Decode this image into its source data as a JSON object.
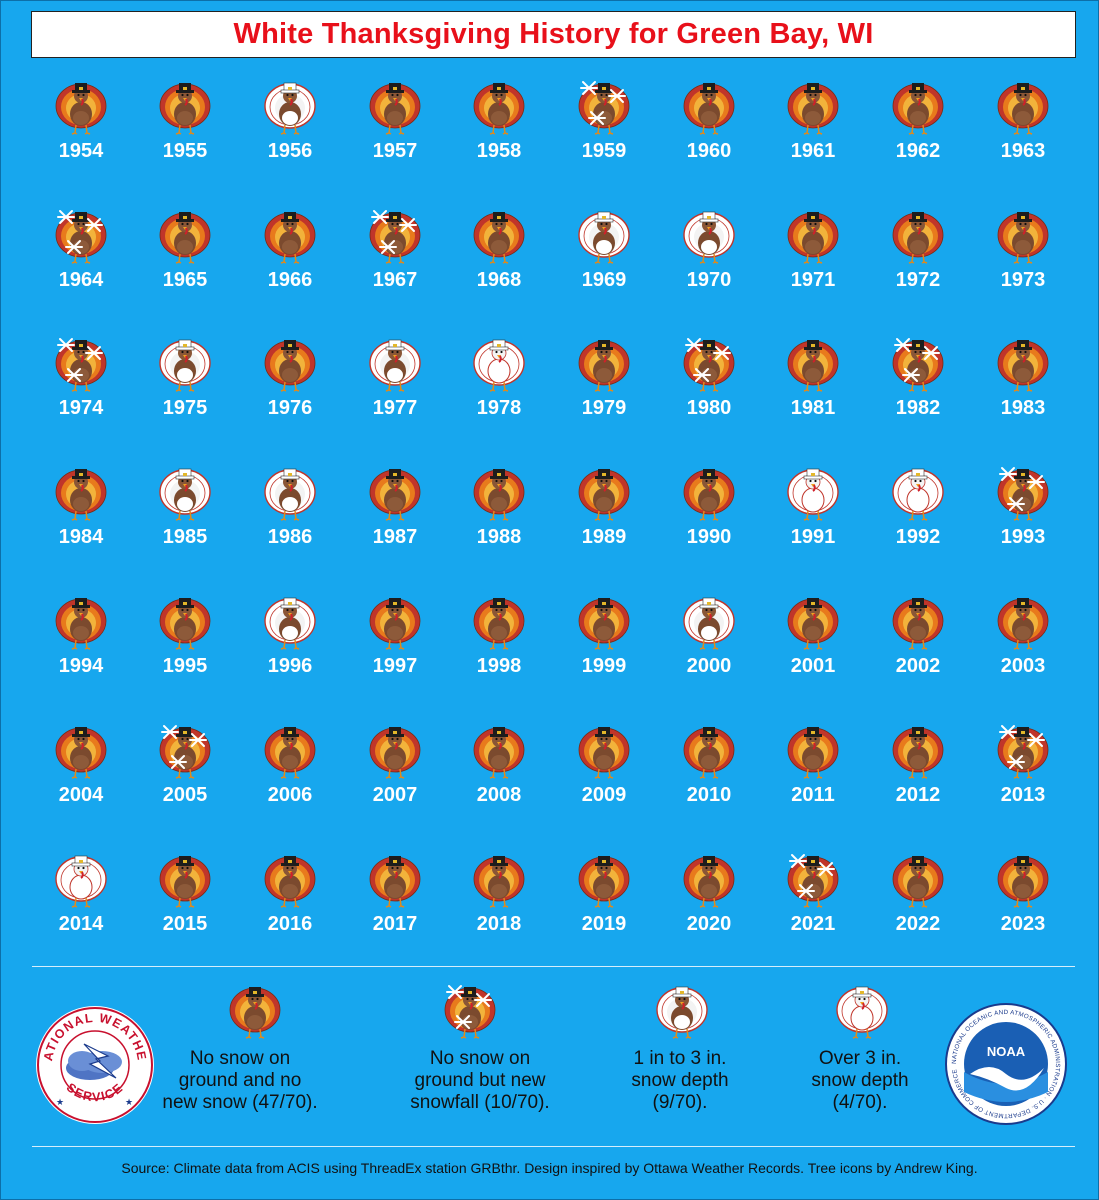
{
  "title": "White Thanksgiving History for Green Bay, WI",
  "colors": {
    "background": "#17a7ee",
    "title_text": "#e8101a",
    "year_text": "#ffffff"
  },
  "categories": {
    "N": "No snow on ground and no new snow",
    "S": "No snow on ground but new snowfall",
    "L": "1 in to 3 in. snow depth",
    "H": "Over 3 in. snow depth"
  },
  "rows": [
    [
      {
        "year": "1954",
        "cat": "N"
      },
      {
        "year": "1955",
        "cat": "N"
      },
      {
        "year": "1956",
        "cat": "L"
      },
      {
        "year": "1957",
        "cat": "N"
      },
      {
        "year": "1958",
        "cat": "N"
      },
      {
        "year": "1959",
        "cat": "S"
      },
      {
        "year": "1960",
        "cat": "N"
      },
      {
        "year": "1961",
        "cat": "N"
      },
      {
        "year": "1962",
        "cat": "N"
      },
      {
        "year": "1963",
        "cat": "N"
      }
    ],
    [
      {
        "year": "1964",
        "cat": "S"
      },
      {
        "year": "1965",
        "cat": "N"
      },
      {
        "year": "1966",
        "cat": "N"
      },
      {
        "year": "1967",
        "cat": "S"
      },
      {
        "year": "1968",
        "cat": "N"
      },
      {
        "year": "1969",
        "cat": "L"
      },
      {
        "year": "1970",
        "cat": "L"
      },
      {
        "year": "1971",
        "cat": "N"
      },
      {
        "year": "1972",
        "cat": "N"
      },
      {
        "year": "1973",
        "cat": "N"
      }
    ],
    [
      {
        "year": "1974",
        "cat": "S"
      },
      {
        "year": "1975",
        "cat": "L"
      },
      {
        "year": "1976",
        "cat": "N"
      },
      {
        "year": "1977",
        "cat": "L"
      },
      {
        "year": "1978",
        "cat": "H"
      },
      {
        "year": "1979",
        "cat": "N"
      },
      {
        "year": "1980",
        "cat": "S"
      },
      {
        "year": "1981",
        "cat": "N"
      },
      {
        "year": "1982",
        "cat": "S"
      },
      {
        "year": "1983",
        "cat": "N"
      }
    ],
    [
      {
        "year": "1984",
        "cat": "N"
      },
      {
        "year": "1985",
        "cat": "L"
      },
      {
        "year": "1986",
        "cat": "L"
      },
      {
        "year": "1987",
        "cat": "N"
      },
      {
        "year": "1988",
        "cat": "N"
      },
      {
        "year": "1989",
        "cat": "N"
      },
      {
        "year": "1990",
        "cat": "N"
      },
      {
        "year": "1991",
        "cat": "H"
      },
      {
        "year": "1992",
        "cat": "H"
      },
      {
        "year": "1993",
        "cat": "S"
      }
    ],
    [
      {
        "year": "1994",
        "cat": "N"
      },
      {
        "year": "1995",
        "cat": "N"
      },
      {
        "year": "1996",
        "cat": "L"
      },
      {
        "year": "1997",
        "cat": "N"
      },
      {
        "year": "1998",
        "cat": "N"
      },
      {
        "year": "1999",
        "cat": "N"
      },
      {
        "year": "2000",
        "cat": "L"
      },
      {
        "year": "2001",
        "cat": "N"
      },
      {
        "year": "2002",
        "cat": "N"
      },
      {
        "year": "2003",
        "cat": "N"
      }
    ],
    [
      {
        "year": "2004",
        "cat": "N"
      },
      {
        "year": "2005",
        "cat": "S"
      },
      {
        "year": "2006",
        "cat": "N"
      },
      {
        "year": "2007",
        "cat": "N"
      },
      {
        "year": "2008",
        "cat": "N"
      },
      {
        "year": "2009",
        "cat": "N"
      },
      {
        "year": "2010",
        "cat": "N"
      },
      {
        "year": "2011",
        "cat": "N"
      },
      {
        "year": "2012",
        "cat": "N"
      },
      {
        "year": "2013",
        "cat": "S"
      }
    ],
    [
      {
        "year": "2014",
        "cat": "H"
      },
      {
        "year": "2015",
        "cat": "N"
      },
      {
        "year": "2016",
        "cat": "N"
      },
      {
        "year": "2017",
        "cat": "N"
      },
      {
        "year": "2018",
        "cat": "N"
      },
      {
        "year": "2019",
        "cat": "N"
      },
      {
        "year": "2020",
        "cat": "N"
      },
      {
        "year": "2021",
        "cat": "S"
      },
      {
        "year": "2022",
        "cat": "N"
      },
      {
        "year": "2023",
        "cat": "N"
      }
    ]
  ],
  "legend": [
    {
      "cat": "N",
      "lines": [
        "No snow on",
        "ground and no",
        "new snow (47/70)."
      ]
    },
    {
      "cat": "S",
      "lines": [
        "No snow on",
        "ground but new",
        "snowfall (10/70)."
      ]
    },
    {
      "cat": "L",
      "lines": [
        "1 in to 3 in.",
        "snow depth",
        "(9/70)."
      ]
    },
    {
      "cat": "H",
      "lines": [
        "Over 3 in.",
        "snow depth",
        "(4/70)."
      ]
    }
  ],
  "nws_logo": {
    "top_text": "NATIONAL WEATHER",
    "bottom_text": "SERVICE"
  },
  "noaa_logo": {
    "center_text": "NOAA",
    "ring_text": "NATIONAL OCEANIC AND ATMOSPHERIC ADMINISTRATION · U.S. DEPARTMENT OF COMMERCE"
  },
  "source": "Source: Climate data from ACIS using ThreadEx station GRBthr. Design inspired by Ottawa Weather Records. Tree icons by Andrew King."
}
